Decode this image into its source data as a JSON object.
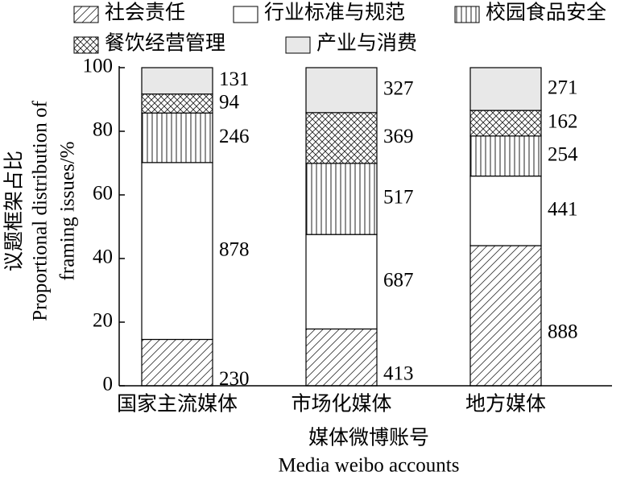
{
  "chart_data": {
    "type": "percent_stacked_bar",
    "y_label_lines": [
      "议题框架占比",
      "Proportional distribution of",
      "framing issues/%"
    ],
    "x_label_lines": [
      "媒体微博账号",
      "Media weibo accounts"
    ],
    "categories": [
      "国家主流媒体",
      "市场化媒体",
      "地方媒体"
    ],
    "series": [
      {
        "name": "社会责任",
        "pattern": "diagonal",
        "color": "#ffffff",
        "values": [
          230,
          413,
          888
        ]
      },
      {
        "name": "行业标准与规范",
        "pattern": "none",
        "color": "#ffffff",
        "values": [
          878,
          687,
          441
        ]
      },
      {
        "name": "校园食品安全",
        "pattern": "vertical",
        "color": "#ffffff",
        "values": [
          246,
          517,
          254
        ]
      },
      {
        "name": "餐饮经营管理",
        "pattern": "crosshatch",
        "color": "#ffffff",
        "values": [
          94,
          369,
          162
        ]
      },
      {
        "name": "产业与消费",
        "pattern": "none",
        "color": "#e8e8e8",
        "values": [
          131,
          327,
          271
        ]
      }
    ],
    "ylim": [
      0,
      100
    ],
    "yticks": [
      0,
      20,
      40,
      60,
      80,
      100
    ]
  }
}
